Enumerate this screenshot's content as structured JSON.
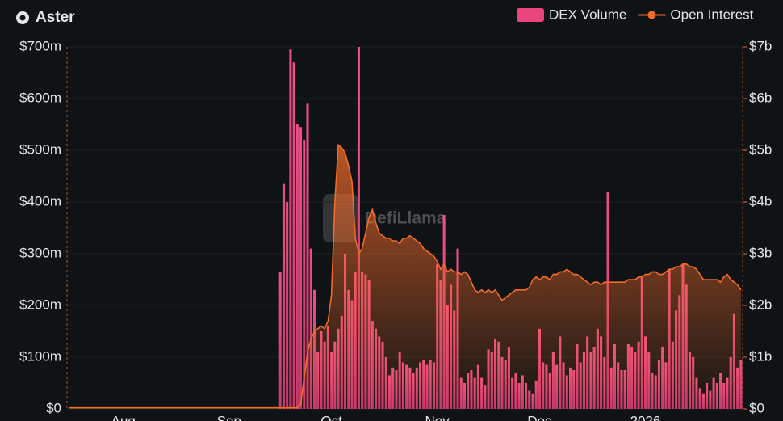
{
  "chart_data": {
    "type": "combo",
    "title": "Aster",
    "watermark": "DefiLlama",
    "legend_position": "top-right",
    "grid": true,
    "categories": [
      null,
      null,
      null,
      null,
      null,
      null,
      null,
      null,
      null,
      null,
      null,
      null,
      null,
      null,
      null,
      null,
      "Aug",
      null,
      null,
      null,
      null,
      null,
      null,
      null,
      null,
      null,
      null,
      null,
      null,
      null,
      null,
      null,
      null,
      null,
      null,
      null,
      null,
      null,
      null,
      null,
      null,
      null,
      null,
      null,
      null,
      null,
      null,
      "Sep",
      null,
      null,
      null,
      null,
      null,
      null,
      null,
      null,
      null,
      null,
      null,
      null,
      null,
      null,
      null,
      null,
      null,
      null,
      null,
      null,
      null,
      null,
      null,
      null,
      null,
      null,
      null,
      null,
      null,
      "Oct",
      null,
      null,
      null,
      null,
      null,
      null,
      null,
      null,
      null,
      null,
      null,
      null,
      null,
      null,
      null,
      null,
      null,
      null,
      null,
      null,
      null,
      null,
      null,
      null,
      null,
      null,
      null,
      null,
      null,
      null,
      "Nov",
      null,
      null,
      null,
      null,
      null,
      null,
      null,
      null,
      null,
      null,
      null,
      null,
      null,
      null,
      null,
      null,
      null,
      null,
      null,
      null,
      null,
      null,
      null,
      null,
      null,
      null,
      null,
      null,
      null,
      "Dec",
      null,
      null,
      null,
      null,
      null,
      null,
      null,
      null,
      null,
      null,
      null,
      null,
      null,
      null,
      null,
      null,
      null,
      null,
      null,
      null,
      null,
      null,
      null,
      null,
      null,
      null,
      null,
      null,
      null,
      null,
      "2026",
      null,
      null,
      null,
      null,
      null,
      null,
      null,
      null,
      null,
      null,
      null,
      null,
      null,
      null,
      null,
      null,
      null,
      null,
      null,
      null,
      null,
      null,
      null,
      null,
      null,
      null,
      null,
      null
    ],
    "ylim": [
      0,
      700
    ],
    "yticks": [
      {
        "value": 0,
        "label": "$0"
      },
      {
        "value": 100,
        "label": "$100m"
      },
      {
        "value": 200,
        "label": "$200m"
      },
      {
        "value": 300,
        "label": "$300m"
      },
      {
        "value": 400,
        "label": "$400m"
      },
      {
        "value": 500,
        "label": "$500m"
      },
      {
        "value": 600,
        "label": "$600m"
      },
      {
        "value": 700,
        "label": "$700m"
      }
    ],
    "y2lim": [
      0,
      7
    ],
    "y2ticks": [
      {
        "value": 0,
        "label": "$0"
      },
      {
        "value": 1,
        "label": "$1b"
      },
      {
        "value": 2,
        "label": "$2b"
      },
      {
        "value": 3,
        "label": "$3b"
      },
      {
        "value": 4,
        "label": "$4b"
      },
      {
        "value": 5,
        "label": "$5b"
      },
      {
        "value": 6,
        "label": "$6b"
      },
      {
        "value": 7,
        "label": "$7b"
      }
    ],
    "series": [
      {
        "name": "DEX Volume",
        "type": "bar",
        "color": "#e9457c",
        "values": [
          0,
          0,
          0,
          0,
          0,
          0,
          0,
          0,
          0,
          0,
          0,
          0,
          0,
          0,
          0,
          0,
          0,
          0,
          0,
          0,
          0,
          0,
          0,
          0,
          0,
          0,
          0,
          0,
          0,
          0,
          0,
          0,
          0,
          0,
          0,
          0,
          0,
          0,
          0,
          0,
          0,
          0,
          0,
          0,
          0,
          0,
          0,
          0,
          0,
          0,
          0,
          0,
          0,
          0,
          0,
          0,
          0,
          0,
          0,
          0,
          0,
          0,
          265,
          435,
          400,
          695,
          670,
          550,
          545,
          520,
          590,
          310,
          230,
          110,
          150,
          130,
          160,
          110,
          130,
          155,
          180,
          300,
          230,
          210,
          265,
          700,
          265,
          260,
          250,
          170,
          155,
          140,
          130,
          100,
          65,
          80,
          75,
          110,
          90,
          85,
          80,
          70,
          80,
          90,
          95,
          85,
          95,
          90,
          280,
          250,
          375,
          200,
          240,
          190,
          310,
          60,
          50,
          70,
          75,
          60,
          85,
          60,
          45,
          115,
          110,
          135,
          130,
          100,
          95,
          120,
          60,
          70,
          50,
          65,
          50,
          35,
          30,
          55,
          155,
          90,
          85,
          70,
          110,
          85,
          140,
          90,
          65,
          80,
          75,
          125,
          90,
          110,
          140,
          110,
          120,
          155,
          140,
          100,
          420,
          80,
          125,
          90,
          75,
          75,
          125,
          120,
          110,
          130,
          255,
          140,
          110,
          70,
          65,
          95,
          120,
          90,
          270,
          130,
          190,
          220,
          280,
          240,
          110,
          100,
          60,
          40,
          30,
          50,
          35,
          60,
          50,
          70,
          50,
          60,
          100,
          185,
          80,
          95
        ]
      },
      {
        "name": "Open Interest",
        "type": "line",
        "axis": "y2",
        "color": "#f26b2a",
        "values": [
          0.02,
          0.02,
          0.02,
          0.02,
          0.02,
          0.02,
          0.02,
          0.02,
          0.02,
          0.02,
          0.02,
          0.02,
          0.02,
          0.02,
          0.02,
          0.02,
          0.02,
          0.02,
          0.02,
          0.02,
          0.02,
          0.02,
          0.02,
          0.02,
          0.02,
          0.02,
          0.02,
          0.02,
          0.02,
          0.02,
          0.02,
          0.02,
          0.02,
          0.02,
          0.02,
          0.02,
          0.02,
          0.02,
          0.02,
          0.02,
          0.02,
          0.02,
          0.02,
          0.02,
          0.02,
          0.02,
          0.02,
          0.02,
          0.02,
          0.02,
          0.02,
          0.02,
          0.02,
          0.02,
          0.02,
          0.02,
          0.02,
          0.02,
          0.02,
          0.02,
          0.02,
          0.02,
          0.02,
          0.02,
          0.02,
          0.02,
          0.02,
          0.02,
          0.1,
          0.6,
          1.1,
          1.35,
          1.5,
          1.55,
          1.6,
          1.55,
          1.7,
          2.2,
          4.0,
          5.1,
          5.05,
          4.95,
          4.7,
          4.4,
          3.3,
          3.0,
          3.1,
          3.4,
          3.7,
          3.85,
          3.6,
          3.4,
          3.35,
          3.3,
          3.3,
          3.25,
          3.25,
          3.2,
          3.3,
          3.3,
          3.35,
          3.3,
          3.25,
          3.2,
          3.1,
          3.05,
          3.0,
          2.95,
          2.85,
          2.7,
          2.8,
          2.65,
          2.7,
          2.65,
          2.65,
          2.6,
          2.65,
          2.6,
          2.45,
          2.3,
          2.25,
          2.3,
          2.25,
          2.3,
          2.25,
          2.3,
          2.2,
          2.1,
          2.15,
          2.2,
          2.25,
          2.3,
          2.3,
          2.3,
          2.3,
          2.35,
          2.5,
          2.55,
          2.5,
          2.55,
          2.55,
          2.5,
          2.6,
          2.6,
          2.65,
          2.65,
          2.7,
          2.65,
          2.6,
          2.6,
          2.55,
          2.5,
          2.45,
          2.4,
          2.45,
          2.45,
          2.4,
          2.45,
          2.45,
          2.45,
          2.45,
          2.45,
          2.45,
          2.45,
          2.5,
          2.5,
          2.5,
          2.55,
          2.55,
          2.6,
          2.6,
          2.65,
          2.65,
          2.6,
          2.6,
          2.65,
          2.7,
          2.7,
          2.75,
          2.75,
          2.8,
          2.8,
          2.75,
          2.75,
          2.7,
          2.6,
          2.5,
          2.5,
          2.5,
          2.5,
          2.5,
          2.45,
          2.55,
          2.6,
          2.5,
          2.45,
          2.4,
          2.3
        ]
      }
    ]
  }
}
